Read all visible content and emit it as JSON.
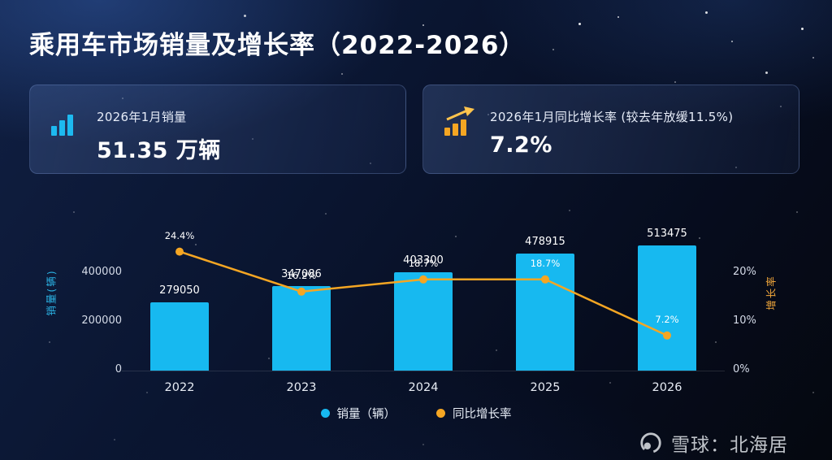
{
  "page": {
    "title": "乘用车市场销量及增长率（2022-2026）"
  },
  "cards": {
    "sales": {
      "label": "2026年1月销量",
      "value": "51.35 万辆"
    },
    "growth": {
      "label": "2026年1月同比增长率 (较去年放缓11.5%)",
      "value": "7.2%"
    }
  },
  "chart_data": {
    "type": "bar+line",
    "categories": [
      "2022",
      "2023",
      "2024",
      "2025",
      "2026"
    ],
    "series": [
      {
        "name": "销量（辆）",
        "type": "bar",
        "color": "#17b9f0",
        "values": [
          279050,
          347086,
          403300,
          478915,
          513475
        ]
      },
      {
        "name": "同比增长率",
        "type": "line",
        "color": "#f5a623",
        "values": [
          24.4,
          16.2,
          18.7,
          18.7,
          7.2
        ]
      }
    ],
    "left_axis": {
      "title": "销量(辆)",
      "ticks": [
        {
          "label": "0",
          "value": 0
        },
        {
          "label": "200000",
          "value": 200000
        },
        {
          "label": "400000",
          "value": 400000
        }
      ]
    },
    "right_axis": {
      "title": "增长率",
      "ticks": [
        {
          "label": "0%",
          "value": 0
        },
        {
          "label": "10%",
          "value": 10
        },
        {
          "label": "20%",
          "value": 20
        }
      ]
    },
    "legend_position": "bottom-center",
    "grid": false
  },
  "footer": {
    "brand": "雪球：北海居"
  }
}
